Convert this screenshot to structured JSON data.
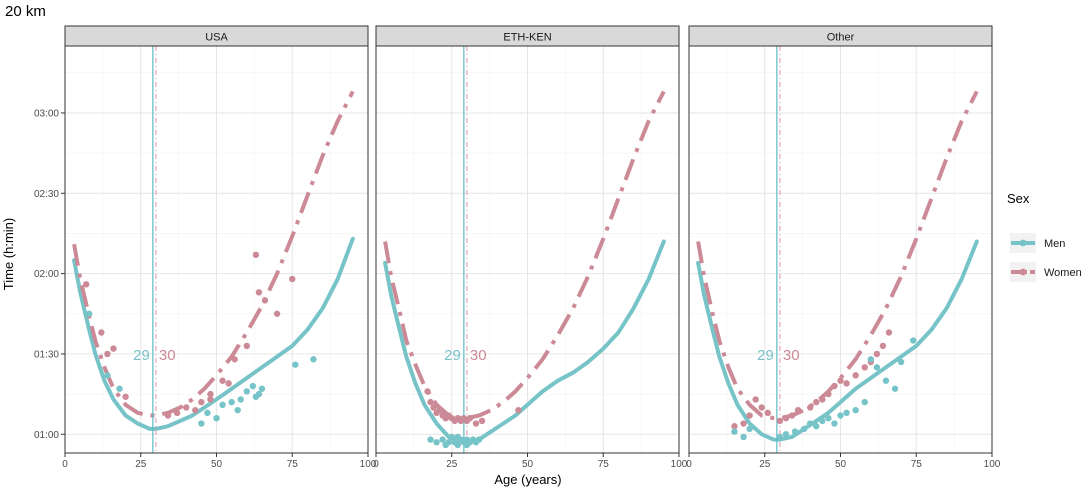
{
  "chart_data": {
    "type": "scatter",
    "title": "20 km",
    "xlabel": "Age (years)",
    "ylabel": "Time (h:min)",
    "xlim": [
      0,
      100
    ],
    "ylim_minutes": [
      53,
      205
    ],
    "x_ticks": [
      0,
      25,
      50,
      75,
      100
    ],
    "x_tick_labels": [
      "0",
      "25",
      "50",
      "75",
      "100"
    ],
    "y_ticks_minutes": [
      60,
      90,
      120,
      150,
      180
    ],
    "y_tick_labels": [
      "01:00",
      "01:30",
      "02:00",
      "02:30",
      "03:00"
    ],
    "grid": true,
    "legend": {
      "title": "Sex",
      "position": "right",
      "entries": [
        {
          "label": "Men",
          "color": "#76c3c8",
          "linetype": "solid"
        },
        {
          "label": "Women",
          "color": "#cc8a96",
          "linetype": "dashed"
        }
      ]
    },
    "colors": {
      "men": "#76c3c8",
      "women": "#cc8a96",
      "men_vline": "#5bbcc4",
      "women_vline": "#e6a4b4"
    },
    "panels": [
      {
        "name": "USA",
        "men_peak_age": 29,
        "women_peak_age": 30,
        "men_peak_label": "29",
        "women_peak_label": "30",
        "men_curve": {
          "x": [
            3,
            5,
            8,
            10,
            13,
            16,
            20,
            24,
            28,
            30,
            34,
            38,
            42,
            46,
            50,
            55,
            60,
            65,
            70,
            75,
            80,
            85,
            90,
            95
          ],
          "y": [
            125,
            113,
            99,
            90,
            80,
            73,
            67,
            64,
            62,
            62,
            63,
            65,
            67,
            70,
            73,
            77,
            81,
            85,
            89,
            93,
            99,
            107,
            118,
            133
          ]
        },
        "women_curve": {
          "x": [
            3,
            5,
            8,
            10,
            13,
            16,
            20,
            24,
            28,
            30,
            34,
            38,
            42,
            46,
            50,
            55,
            60,
            65,
            70,
            75,
            80,
            85,
            90,
            95
          ],
          "y": [
            131,
            118,
            104,
            95,
            85,
            77,
            71,
            68,
            67,
            67,
            68,
            70,
            73,
            77,
            82,
            89,
            98,
            108,
            120,
            134,
            149,
            164,
            177,
            188
          ]
        },
        "men_points": {
          "x": [
            8,
            14,
            18,
            45,
            50,
            55,
            57,
            58,
            60,
            62,
            63,
            64,
            65,
            76,
            82,
            52,
            47
          ],
          "y": [
            105,
            82,
            77,
            64,
            66,
            72,
            69,
            73,
            76,
            78,
            74,
            75,
            77,
            86,
            88,
            71,
            68
          ]
        },
        "women_points": {
          "x": [
            7,
            12,
            14,
            16,
            34,
            37,
            40,
            43,
            45,
            48,
            52,
            54,
            56,
            60,
            63,
            64,
            66,
            70,
            75,
            20,
            48
          ],
          "y": [
            116,
            98,
            90,
            92,
            67,
            68,
            70,
            69,
            72,
            73,
            80,
            79,
            88,
            93,
            127,
            113,
            110,
            105,
            118,
            74,
            75
          ]
        }
      },
      {
        "name": "ETH-KEN",
        "men_peak_age": 29,
        "women_peak_age": 30,
        "men_peak_label": "29",
        "women_peak_label": "30",
        "men_curve": {
          "x": [
            3,
            5,
            8,
            10,
            13,
            16,
            20,
            24,
            28,
            30,
            34,
            38,
            42,
            46,
            50,
            55,
            60,
            65,
            70,
            75,
            80,
            85,
            90,
            95
          ],
          "y": [
            124,
            112,
            98,
            89,
            79,
            71,
            64,
            59,
            57,
            57,
            58,
            61,
            64,
            67,
            71,
            76,
            80,
            83,
            87,
            92,
            98,
            107,
            118,
            132
          ]
        },
        "women_curve": {
          "x": [
            3,
            5,
            8,
            10,
            13,
            16,
            20,
            24,
            28,
            30,
            34,
            38,
            42,
            46,
            50,
            55,
            60,
            65,
            70,
            75,
            80,
            85,
            90,
            95
          ],
          "y": [
            132,
            119,
            105,
            95,
            86,
            78,
            71,
            67,
            66,
            66,
            67,
            69,
            72,
            76,
            81,
            88,
            97,
            107,
            119,
            133,
            148,
            163,
            177,
            188
          ]
        },
        "men_points": {
          "x": [
            18,
            20,
            22,
            24,
            25,
            26,
            27,
            28,
            29,
            30,
            31,
            32,
            33,
            34,
            23,
            27,
            30
          ],
          "y": [
            58,
            57,
            58,
            57,
            59,
            57,
            56,
            58,
            57,
            56,
            57,
            58,
            57,
            58,
            56,
            59,
            58
          ]
        },
        "women_points": {
          "x": [
            17,
            18,
            19,
            20,
            21,
            22,
            23,
            24,
            25,
            26,
            27,
            28,
            29,
            30,
            31,
            33,
            35,
            47
          ],
          "y": [
            76,
            72,
            70,
            68,
            69,
            67,
            66,
            67,
            66,
            65,
            66,
            65,
            66,
            65,
            66,
            64,
            65,
            69
          ]
        }
      },
      {
        "name": "Other",
        "men_peak_age": 29,
        "women_peak_age": 30,
        "men_peak_label": "29",
        "women_peak_label": "30",
        "men_curve": {
          "x": [
            3,
            5,
            8,
            10,
            13,
            16,
            20,
            24,
            28,
            30,
            34,
            38,
            42,
            46,
            50,
            55,
            60,
            65,
            70,
            75,
            80,
            85,
            90,
            95
          ],
          "y": [
            124,
            112,
            98,
            89,
            79,
            71,
            64,
            60,
            58,
            58,
            59,
            62,
            65,
            68,
            72,
            77,
            81,
            85,
            89,
            93,
            99,
            107,
            118,
            132
          ]
        },
        "women_curve": {
          "x": [
            3,
            5,
            8,
            10,
            13,
            16,
            20,
            24,
            28,
            30,
            34,
            38,
            42,
            46,
            50,
            55,
            60,
            65,
            70,
            75,
            80,
            85,
            90,
            95
          ],
          "y": [
            132,
            119,
            104,
            95,
            85,
            77,
            71,
            67,
            66,
            66,
            67,
            69,
            72,
            76,
            81,
            88,
            97,
            107,
            119,
            133,
            148,
            163,
            177,
            188
          ]
        },
        "men_points": {
          "x": [
            15,
            18,
            20,
            32,
            35,
            38,
            40,
            42,
            44,
            46,
            48,
            50,
            52,
            55,
            58,
            60,
            62,
            65,
            68,
            70,
            74,
            30
          ],
          "y": [
            61,
            59,
            62,
            60,
            61,
            62,
            64,
            63,
            65,
            66,
            64,
            67,
            68,
            69,
            72,
            88,
            85,
            80,
            77,
            87,
            95,
            59
          ]
        },
        "women_points": {
          "x": [
            15,
            18,
            20,
            22,
            24,
            26,
            32,
            34,
            36,
            40,
            42,
            44,
            46,
            48,
            50,
            52,
            55,
            58,
            60,
            62,
            64,
            66,
            30
          ],
          "y": [
            63,
            64,
            67,
            73,
            70,
            68,
            66,
            67,
            69,
            70,
            72,
            73,
            75,
            78,
            80,
            79,
            82,
            85,
            87,
            90,
            93,
            98,
            65
          ]
        }
      }
    ]
  }
}
